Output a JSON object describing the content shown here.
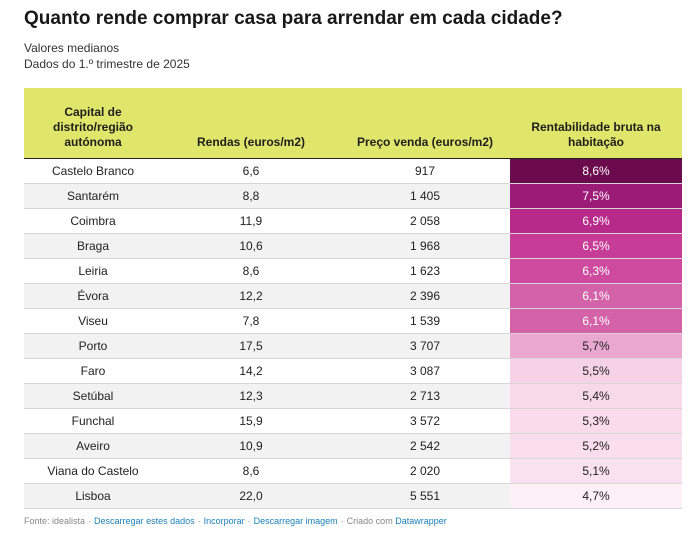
{
  "header": {
    "title": "Quanto rende comprar casa para arrendar em cada cidade?",
    "subtitle_1": "Valores medianos",
    "subtitle_2": "Dados do 1.º trimestre de 2025"
  },
  "table": {
    "columns": [
      "Capital de distrito/região autónoma",
      "Rendas (euros/m2)",
      "Preço venda (euros/m2)",
      "Rentabilidade bruta na habitação"
    ],
    "rows": [
      {
        "city": "Castelo Branco",
        "renda": "6,6",
        "preco": "917",
        "rent": "8,6%",
        "bg": "#6b0a4d",
        "fg": "#ffffff"
      },
      {
        "city": "Santarém",
        "renda": "8,8",
        "preco": "1 405",
        "rent": "7,5%",
        "bg": "#9c1b76",
        "fg": "#ffffff"
      },
      {
        "city": "Coimbra",
        "renda": "11,9",
        "preco": "2 058",
        "rent": "6,9%",
        "bg": "#b82a8a",
        "fg": "#ffffff"
      },
      {
        "city": "Braga",
        "renda": "10,6",
        "preco": "1 968",
        "rent": "6,5%",
        "bg": "#c73c96",
        "fg": "#ffffff"
      },
      {
        "city": "Leiria",
        "renda": "8,6",
        "preco": "1 623",
        "rent": "6,3%",
        "bg": "#cd4a9e",
        "fg": "#ffffff"
      },
      {
        "city": "Évora",
        "renda": "12,2",
        "preco": "2 396",
        "rent": "6,1%",
        "bg": "#d462a8",
        "fg": "#ffffff"
      },
      {
        "city": "Viseu",
        "renda": "7,8",
        "preco": "1 539",
        "rent": "6,1%",
        "bg": "#d462a8",
        "fg": "#ffffff"
      },
      {
        "city": "Porto",
        "renda": "17,5",
        "preco": "3 707",
        "rent": "5,7%",
        "bg": "#eaa8d0",
        "fg": "#222222"
      },
      {
        "city": "Faro",
        "renda": "14,2",
        "preco": "3 087",
        "rent": "5,5%",
        "bg": "#f6d2e7",
        "fg": "#222222"
      },
      {
        "city": "Setúbal",
        "renda": "12,3",
        "preco": "2 713",
        "rent": "5,4%",
        "bg": "#f8d9ea",
        "fg": "#222222"
      },
      {
        "city": "Funchal",
        "renda": "15,9",
        "preco": "3 572",
        "rent": "5,3%",
        "bg": "#f9dbec",
        "fg": "#222222"
      },
      {
        "city": "Aveiro",
        "renda": "10,9",
        "preco": "2 542",
        "rent": "5,2%",
        "bg": "#fadeee",
        "fg": "#222222"
      },
      {
        "city": "Viana do Castelo",
        "renda": "8,6",
        "preco": "2 020",
        "rent": "5,1%",
        "bg": "#fae1ef",
        "fg": "#222222"
      },
      {
        "city": "Lisboa",
        "renda": "22,0",
        "preco": "5 551",
        "rent": "4,7%",
        "bg": "#fdf0f7",
        "fg": "#222222"
      }
    ]
  },
  "footer": {
    "source": "Fonte: idealista",
    "download_data": "Descarregar estes dados",
    "embed": "Incorporar",
    "download_image": "Descarregar imagem",
    "created_with": "Criado com",
    "datawrapper": "Datawrapper"
  }
}
